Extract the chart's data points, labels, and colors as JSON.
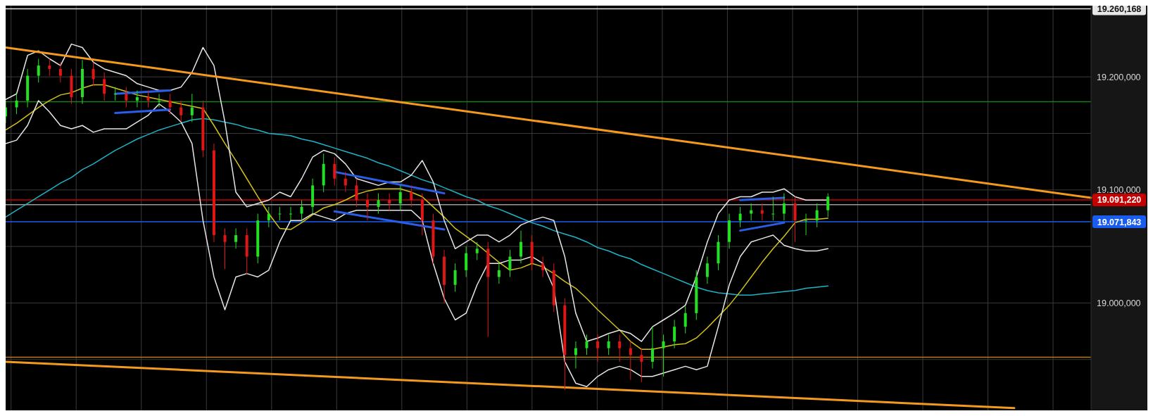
{
  "chart_data": {
    "type": "candlestick",
    "categories": [
      null,
      null,
      null,
      null,
      null,
      null,
      null,
      null,
      null,
      null,
      null,
      null,
      null,
      null,
      null,
      null,
      null,
      null,
      null,
      null,
      null,
      null,
      null,
      null,
      null,
      null,
      null,
      null,
      null,
      null,
      null,
      null,
      null,
      null,
      null,
      null,
      null,
      null,
      null,
      null,
      null,
      null,
      null,
      null,
      null,
      null,
      null,
      null,
      null,
      null,
      null,
      null,
      null,
      null,
      null,
      null,
      null,
      null,
      null,
      null,
      null,
      null,
      null,
      null,
      null,
      null,
      null,
      null,
      null,
      null,
      null,
      null,
      null,
      null,
      null,
      null,
      null,
      null,
      null,
      null,
      null,
      null,
      null,
      null,
      null,
      null,
      null,
      null,
      null,
      null,
      null,
      null,
      null,
      null,
      null,
      null,
      null,
      null,
      null,
      null
    ],
    "ohlc": [
      [
        19165,
        19179,
        19159,
        19173
      ],
      [
        19173,
        19185,
        19167,
        19179
      ],
      [
        19179,
        19207,
        19173,
        19201
      ],
      [
        19201,
        19216,
        19195,
        19210
      ],
      [
        19210,
        19216,
        19201,
        19207
      ],
      [
        19207,
        19213,
        19195,
        19201
      ],
      [
        19201,
        19207,
        19176,
        19182
      ],
      [
        19182,
        19215,
        19176,
        19207
      ],
      [
        19207,
        19213,
        19192,
        19198
      ],
      [
        19198,
        19204,
        19179,
        19185
      ],
      [
        19185,
        19191,
        19179,
        19185
      ],
      [
        19185,
        19191,
        19173,
        19179
      ],
      [
        19179,
        19188,
        19173,
        19182
      ],
      [
        19182,
        19188,
        19173,
        19179
      ],
      [
        19179,
        19185,
        19173,
        19179
      ],
      [
        19179,
        19185,
        19167,
        19173
      ],
      [
        19173,
        19179,
        19160,
        19166
      ],
      [
        19166,
        19185,
        19160,
        19173
      ],
      [
        19173,
        19179,
        19129,
        19135
      ],
      [
        19135,
        19141,
        19054,
        19060
      ],
      [
        19060,
        19066,
        19030,
        19054
      ],
      [
        19054,
        19066,
        19048,
        19060
      ],
      [
        19060,
        19066,
        19025,
        19041
      ],
      [
        19041,
        19079,
        19035,
        19073
      ],
      [
        19073,
        19085,
        19067,
        19079
      ],
      [
        19079,
        19085,
        19073,
        19079
      ],
      [
        19079,
        19085,
        19073,
        19079
      ],
      [
        19079,
        19091,
        19073,
        19085
      ],
      [
        19085,
        19110,
        19079,
        19104
      ],
      [
        19104,
        19132,
        19098,
        19123
      ],
      [
        19123,
        19129,
        19104,
        19110
      ],
      [
        19110,
        19116,
        19098,
        19104
      ],
      [
        19104,
        19110,
        19085,
        19091
      ],
      [
        19091,
        19097,
        19073,
        19085
      ],
      [
        19085,
        19097,
        19079,
        19091
      ],
      [
        19091,
        19097,
        19082,
        19088
      ],
      [
        19088,
        19104,
        19082,
        19098
      ],
      [
        19098,
        19104,
        19085,
        19091
      ],
      [
        19091,
        19097,
        19060,
        19073
      ],
      [
        19073,
        19079,
        19035,
        19041
      ],
      [
        19041,
        19047,
        19000,
        19016
      ],
      [
        19016,
        19035,
        19010,
        19029
      ],
      [
        19029,
        19050,
        19023,
        19044
      ],
      [
        19044,
        19054,
        19038,
        19048
      ],
      [
        19048,
        19054,
        18970,
        19023
      ],
      [
        19023,
        19035,
        19017,
        19029
      ],
      [
        19029,
        19047,
        19023,
        19041
      ],
      [
        19041,
        19064,
        19035,
        19054
      ],
      [
        19054,
        19060,
        19029,
        19035
      ],
      [
        19035,
        19041,
        19023,
        19029
      ],
      [
        19029,
        19035,
        18992,
        18998
      ],
      [
        18998,
        19004,
        18923,
        18954
      ],
      [
        18954,
        18966,
        18942,
        18960
      ],
      [
        18960,
        18972,
        18954,
        18966
      ],
      [
        18966,
        18972,
        18948,
        18960
      ],
      [
        18960,
        18972,
        18954,
        18966
      ],
      [
        18966,
        18972,
        18948,
        18960
      ],
      [
        18960,
        18966,
        18932,
        18954
      ],
      [
        18954,
        18960,
        18930,
        18948
      ],
      [
        18948,
        18979,
        18942,
        18960
      ],
      [
        18960,
        18972,
        18935,
        18966
      ],
      [
        18966,
        18985,
        18960,
        18979
      ],
      [
        18979,
        18997,
        18973,
        18991
      ],
      [
        18991,
        19029,
        18985,
        19023
      ],
      [
        19023,
        19041,
        19017,
        19035
      ],
      [
        19035,
        19060,
        19029,
        19054
      ],
      [
        19054,
        19079,
        19048,
        19073
      ],
      [
        19073,
        19085,
        19067,
        19079
      ],
      [
        19079,
        19088,
        19073,
        19082
      ],
      [
        19082,
        19088,
        19073,
        19079
      ],
      [
        19079,
        19094,
        19073,
        19079
      ],
      [
        19079,
        19097,
        19073,
        19088
      ],
      [
        19088,
        19094,
        19054,
        19073
      ],
      [
        19073,
        19079,
        19060,
        19073
      ],
      [
        19073,
        19088,
        19067,
        19082
      ],
      [
        19082,
        19097,
        19076,
        19094
      ],
      null,
      null,
      null,
      null,
      null,
      null,
      null,
      null,
      null,
      null,
      null,
      null,
      null,
      null,
      null,
      null,
      null,
      null,
      null,
      null,
      null,
      null,
      null,
      null
    ],
    "series": [
      {
        "type": "line",
        "color": "#1fb3c8",
        "values": [
          19076,
          19082,
          19088,
          19094,
          19100,
          19106,
          19111,
          19118,
          19123,
          19129,
          19135,
          19140,
          19145,
          19149,
          19153,
          19156,
          19159,
          19162,
          19163,
          19162,
          19160,
          19158,
          19155,
          19153,
          19150,
          19149,
          19148,
          19145,
          19143,
          19140,
          19137,
          19134,
          19131,
          19128,
          19124,
          19121,
          19117,
          19113,
          19109,
          19106,
          19102,
          19098,
          19094,
          19091,
          19086,
          19083,
          19079,
          19075,
          19071,
          19068,
          19064,
          19061,
          19058,
          19054,
          19049,
          19046,
          19042,
          19039,
          19034,
          19030,
          19026,
          19022,
          19018,
          19014,
          19011,
          19009,
          19008,
          19007,
          19007,
          19008,
          19009,
          19010,
          19011,
          19013,
          19014,
          19015,
          null,
          null,
          null,
          null,
          null,
          null,
          null,
          null,
          null,
          null,
          null,
          null,
          null,
          null,
          null,
          null,
          null,
          null,
          null,
          null,
          null,
          null,
          null,
          null
        ]
      },
      {
        "type": "line",
        "color": "#d4c21a",
        "values": [
          19153,
          19159,
          19166,
          19173,
          19179,
          19184,
          19186,
          19190,
          19193,
          19193,
          19190,
          19187,
          19184,
          19182,
          19180,
          19178,
          19176,
          19174,
          19172,
          19157,
          19141,
          19126,
          19110,
          19094,
          19079,
          19066,
          19065,
          19071,
          19078,
          19084,
          19087,
          19091,
          19096,
          19099,
          19101,
          19101,
          19101,
          19098,
          19094,
          19085,
          19076,
          19066,
          19059,
          19052,
          19044,
          19036,
          19029,
          19031,
          19035,
          19032,
          19026,
          19019,
          19013,
          19004,
          18994,
          18985,
          18976,
          18966,
          18959,
          18959,
          18961,
          18963,
          18964,
          18969,
          18978,
          18988,
          18998,
          19010,
          19023,
          19036,
          19048,
          19059,
          19071,
          19074,
          19074,
          19075,
          null,
          null,
          null,
          null,
          null,
          null,
          null,
          null,
          null,
          null,
          null,
          null,
          null,
          null,
          null,
          null,
          null,
          null,
          null,
          null,
          null,
          null,
          null,
          null
        ]
      },
      {
        "type": "line",
        "color": "#e6e6e6",
        "values": [
          19180,
          19185,
          19219,
          19223,
          19216,
          19210,
          19229,
          19226,
          19213,
          19207,
          19204,
          19201,
          19194,
          19191,
          19188,
          19188,
          19191,
          19204,
          19226,
          19210,
          19160,
          19098,
          19085,
          19088,
          19091,
          19098,
          19094,
          19110,
          19129,
          19135,
          19132,
          19123,
          19110,
          19107,
          19104,
          19107,
          19107,
          19113,
          19126,
          19107,
          19073,
          19048,
          19054,
          19060,
          19060,
          19054,
          19060,
          19069,
          19073,
          19076,
          19073,
          19041,
          18991,
          18966,
          18969,
          18973,
          18976,
          18973,
          18966,
          18979,
          18985,
          18991,
          18998,
          19023,
          19054,
          19079,
          19091,
          19094,
          19094,
          19098,
          19098,
          19101,
          19094,
          19091,
          19091,
          19091,
          null,
          null,
          null,
          null,
          null,
          null,
          null,
          null,
          null,
          null,
          null,
          null,
          null,
          null,
          null,
          null,
          null,
          null,
          null,
          null,
          null,
          null,
          null,
          null
        ]
      },
      {
        "type": "line",
        "color": "#e6e6e6",
        "values": [
          19141,
          19144,
          19157,
          19179,
          19169,
          19157,
          19154,
          19157,
          19151,
          19154,
          19154,
          19154,
          19160,
          19166,
          19176,
          19169,
          19160,
          19141,
          19073,
          19023,
          18994,
          19023,
          19026,
          19023,
          19029,
          19054,
          19073,
          19073,
          19079,
          19076,
          19073,
          19079,
          19082,
          19082,
          19082,
          19082,
          19082,
          19082,
          19073,
          19035,
          19004,
          18985,
          18991,
          19016,
          19035,
          19035,
          19038,
          19038,
          19041,
          19035,
          19013,
          18948,
          18929,
          18926,
          18935,
          18941,
          18944,
          18941,
          18935,
          18935,
          18938,
          18941,
          18944,
          18941,
          18944,
          18979,
          19016,
          19041,
          19054,
          19057,
          19060,
          19051,
          19048,
          19046,
          19046,
          19048,
          null,
          null,
          null,
          null,
          null,
          null,
          null,
          null,
          null,
          null,
          null,
          null,
          null,
          null,
          null,
          null,
          null,
          null,
          null,
          null,
          null,
          null,
          null,
          null
        ]
      },
      {
        "type": "line",
        "color": "#f39a1e",
        "values": [
          19226,
          null,
          null,
          null,
          null,
          null,
          null,
          null,
          null,
          null,
          null,
          null,
          null,
          null,
          null,
          null,
          null,
          null,
          null,
          null,
          null,
          null,
          null,
          null,
          null,
          null,
          null,
          null,
          null,
          null,
          null,
          null,
          null,
          null,
          null,
          null,
          null,
          null,
          null,
          null,
          null,
          null,
          null,
          null,
          null,
          null,
          null,
          null,
          null,
          null,
          null,
          null,
          null,
          null,
          null,
          null,
          null,
          null,
          null,
          null,
          null,
          null,
          null,
          null,
          null,
          null,
          null,
          null,
          null,
          null,
          null,
          null,
          null,
          null,
          null,
          null,
          null,
          null,
          null,
          null,
          null,
          null,
          null,
          null,
          null,
          null,
          null,
          null,
          null,
          null,
          null,
          null,
          null,
          null,
          null,
          null,
          null,
          null,
          null,
          19093
        ]
      },
      {
        "type": "line",
        "color": "#f39a1e",
        "values": [
          18948,
          null,
          null,
          null,
          null,
          null,
          null,
          null,
          null,
          null,
          null,
          null,
          null,
          null,
          null,
          null,
          null,
          null,
          null,
          null,
          null,
          null,
          null,
          null,
          null,
          null,
          null,
          null,
          null,
          null,
          null,
          null,
          null,
          null,
          null,
          null,
          null,
          null,
          null,
          null,
          null,
          null,
          null,
          null,
          null,
          null,
          null,
          null,
          null,
          null,
          null,
          null,
          null,
          null,
          null,
          null,
          null,
          null,
          null,
          null,
          null,
          null,
          null,
          null,
          null,
          null,
          null,
          null,
          null,
          null,
          null,
          null,
          null,
          null,
          null,
          null,
          null,
          null,
          null,
          null,
          null,
          null,
          null,
          null,
          null,
          null,
          null,
          null,
          null,
          null,
          null,
          null,
          18907,
          null,
          null,
          null,
          null,
          null,
          null,
          null
        ]
      },
      {
        "type": "line",
        "color": "#2a5ee8",
        "values": [
          null,
          null,
          null,
          null,
          null,
          null,
          null,
          null,
          null,
          null,
          19185,
          null,
          null,
          null,
          null,
          19188,
          null,
          null,
          null,
          null,
          null,
          null,
          null,
          null,
          null,
          null,
          null,
          null,
          null,
          null,
          null,
          null,
          null,
          null,
          null,
          null,
          null,
          null,
          null,
          null,
          null,
          null,
          null,
          null,
          null,
          null,
          null,
          null,
          null,
          null,
          null,
          null,
          null,
          null,
          null,
          null,
          null,
          null,
          null,
          null,
          null,
          null,
          null,
          null,
          null,
          null,
          null,
          null,
          null,
          null,
          null,
          null,
          null,
          null,
          null,
          null,
          null,
          null,
          null,
          null,
          null,
          null,
          null,
          null,
          null,
          null,
          null,
          null,
          null,
          null,
          null,
          null,
          null,
          null,
          null,
          null,
          null,
          null,
          null,
          null
        ]
      },
      {
        "type": "line",
        "color": "#2a5ee8",
        "values": [
          null,
          null,
          null,
          null,
          null,
          null,
          null,
          null,
          null,
          null,
          19168,
          null,
          null,
          null,
          null,
          19171,
          null,
          null,
          null,
          null,
          null,
          null,
          null,
          null,
          null,
          null,
          null,
          null,
          null,
          null,
          null,
          null,
          null,
          null,
          null,
          null,
          null,
          null,
          null,
          null,
          null,
          null,
          null,
          null,
          null,
          null,
          null,
          null,
          null,
          null,
          null,
          null,
          null,
          null,
          null,
          null,
          null,
          null,
          null,
          null,
          null,
          null,
          null,
          null,
          null,
          null,
          null,
          null,
          null,
          null,
          null,
          null,
          null,
          null,
          null,
          null,
          null,
          null,
          null,
          null,
          null,
          null,
          null,
          null,
          null,
          null,
          null,
          null,
          null,
          null,
          null,
          null,
          null,
          null,
          null,
          null,
          null,
          null,
          null,
          null
        ]
      },
      {
        "type": "line",
        "color": "#2a5ee8",
        "values": [
          null,
          null,
          null,
          null,
          null,
          null,
          null,
          null,
          null,
          null,
          null,
          null,
          null,
          null,
          null,
          null,
          null,
          null,
          null,
          null,
          null,
          null,
          null,
          null,
          null,
          null,
          null,
          null,
          null,
          null,
          19116,
          null,
          null,
          null,
          null,
          null,
          null,
          null,
          null,
          null,
          19097,
          null,
          null,
          null,
          null,
          null,
          null,
          null,
          null,
          null,
          null,
          null,
          null,
          null,
          null,
          null,
          null,
          null,
          null,
          null,
          null,
          null,
          null,
          null,
          null,
          null,
          null,
          null,
          null,
          null,
          null,
          null,
          null,
          null,
          null,
          null,
          null,
          null,
          null,
          null,
          null,
          null,
          null,
          null,
          null,
          null,
          null,
          null,
          null,
          null,
          null,
          null,
          null,
          null,
          null,
          null,
          null,
          null,
          null,
          null
        ]
      },
      {
        "type": "line",
        "color": "#2a5ee8",
        "values": [
          null,
          null,
          null,
          null,
          null,
          null,
          null,
          null,
          null,
          null,
          null,
          null,
          null,
          null,
          null,
          null,
          null,
          null,
          null,
          null,
          null,
          null,
          null,
          null,
          null,
          null,
          null,
          null,
          null,
          null,
          19081,
          null,
          null,
          null,
          null,
          null,
          null,
          null,
          null,
          null,
          19065,
          null,
          null,
          null,
          null,
          null,
          null,
          null,
          null,
          null,
          null,
          null,
          null,
          null,
          null,
          null,
          null,
          null,
          null,
          null,
          null,
          null,
          null,
          null,
          null,
          null,
          null,
          null,
          null,
          null,
          null,
          null,
          null,
          null,
          null,
          null,
          null,
          null,
          null,
          null,
          null,
          null,
          null,
          null,
          null,
          null,
          null,
          null,
          null,
          null,
          null,
          null,
          null,
          null,
          null,
          null,
          null,
          null,
          null,
          null
        ]
      },
      {
        "type": "line",
        "color": "#2a5ee8",
        "values": [
          null,
          null,
          null,
          null,
          null,
          null,
          null,
          null,
          null,
          null,
          null,
          null,
          null,
          null,
          null,
          null,
          null,
          null,
          null,
          null,
          null,
          null,
          null,
          null,
          null,
          null,
          null,
          null,
          null,
          null,
          null,
          null,
          null,
          null,
          null,
          null,
          null,
          null,
          null,
          null,
          null,
          null,
          null,
          null,
          null,
          null,
          null,
          null,
          null,
          null,
          null,
          null,
          null,
          null,
          null,
          null,
          null,
          null,
          null,
          null,
          null,
          null,
          null,
          null,
          null,
          null,
          null,
          19091,
          null,
          null,
          null,
          19093,
          null,
          null,
          null,
          null,
          null,
          null,
          null,
          null,
          null,
          null,
          null,
          null,
          null,
          null,
          null,
          null,
          null,
          null,
          null,
          null,
          null,
          null,
          null,
          null,
          null,
          null,
          null,
          null
        ]
      },
      {
        "type": "line",
        "color": "#2a5ee8",
        "values": [
          null,
          null,
          null,
          null,
          null,
          null,
          null,
          null,
          null,
          null,
          null,
          null,
          null,
          null,
          null,
          null,
          null,
          null,
          null,
          null,
          null,
          null,
          null,
          null,
          null,
          null,
          null,
          null,
          null,
          null,
          null,
          null,
          null,
          null,
          null,
          null,
          null,
          null,
          null,
          null,
          null,
          null,
          null,
          null,
          null,
          null,
          null,
          null,
          null,
          null,
          null,
          null,
          null,
          null,
          null,
          null,
          null,
          null,
          null,
          null,
          null,
          null,
          null,
          null,
          null,
          null,
          null,
          19064,
          null,
          null,
          null,
          19071,
          null,
          null,
          null,
          null,
          null,
          null,
          null,
          null,
          null,
          null,
          null,
          null,
          null,
          null,
          null,
          null,
          null,
          null,
          null,
          null,
          null,
          null,
          null,
          null,
          null,
          null,
          null,
          null
        ]
      }
    ],
    "ylim": [
      18905,
      19263
    ],
    "yticks": [
      {
        "value": 18950,
        "label": null
      },
      {
        "value": 19000,
        "label": "19.000,000"
      },
      {
        "value": 19050,
        "label": null
      },
      {
        "value": 19100,
        "label": "19.100,000"
      },
      {
        "value": 19150,
        "label": null
      },
      {
        "value": 19200,
        "label": "19.200,000"
      }
    ],
    "ref_lines": [
      {
        "axis": "y",
        "value": 19260.168,
        "label": "19.260,168",
        "color": "#e8e8e8"
      },
      {
        "axis": "y",
        "value": 19091.22,
        "label": "19.091,220",
        "color": "#c40000"
      },
      {
        "axis": "y",
        "value": 19087,
        "label": null,
        "color": "#9a9a9a"
      },
      {
        "axis": "y",
        "value": 19071.843,
        "label": "19.071,843",
        "color": "#1a5cf0"
      },
      {
        "axis": "y",
        "value": 19178,
        "label": null,
        "color": "#1e7a1e"
      },
      {
        "axis": "y",
        "value": 18952,
        "label": null,
        "color": "#b87a1a"
      }
    ],
    "grid": true,
    "tick_labels": "y"
  }
}
